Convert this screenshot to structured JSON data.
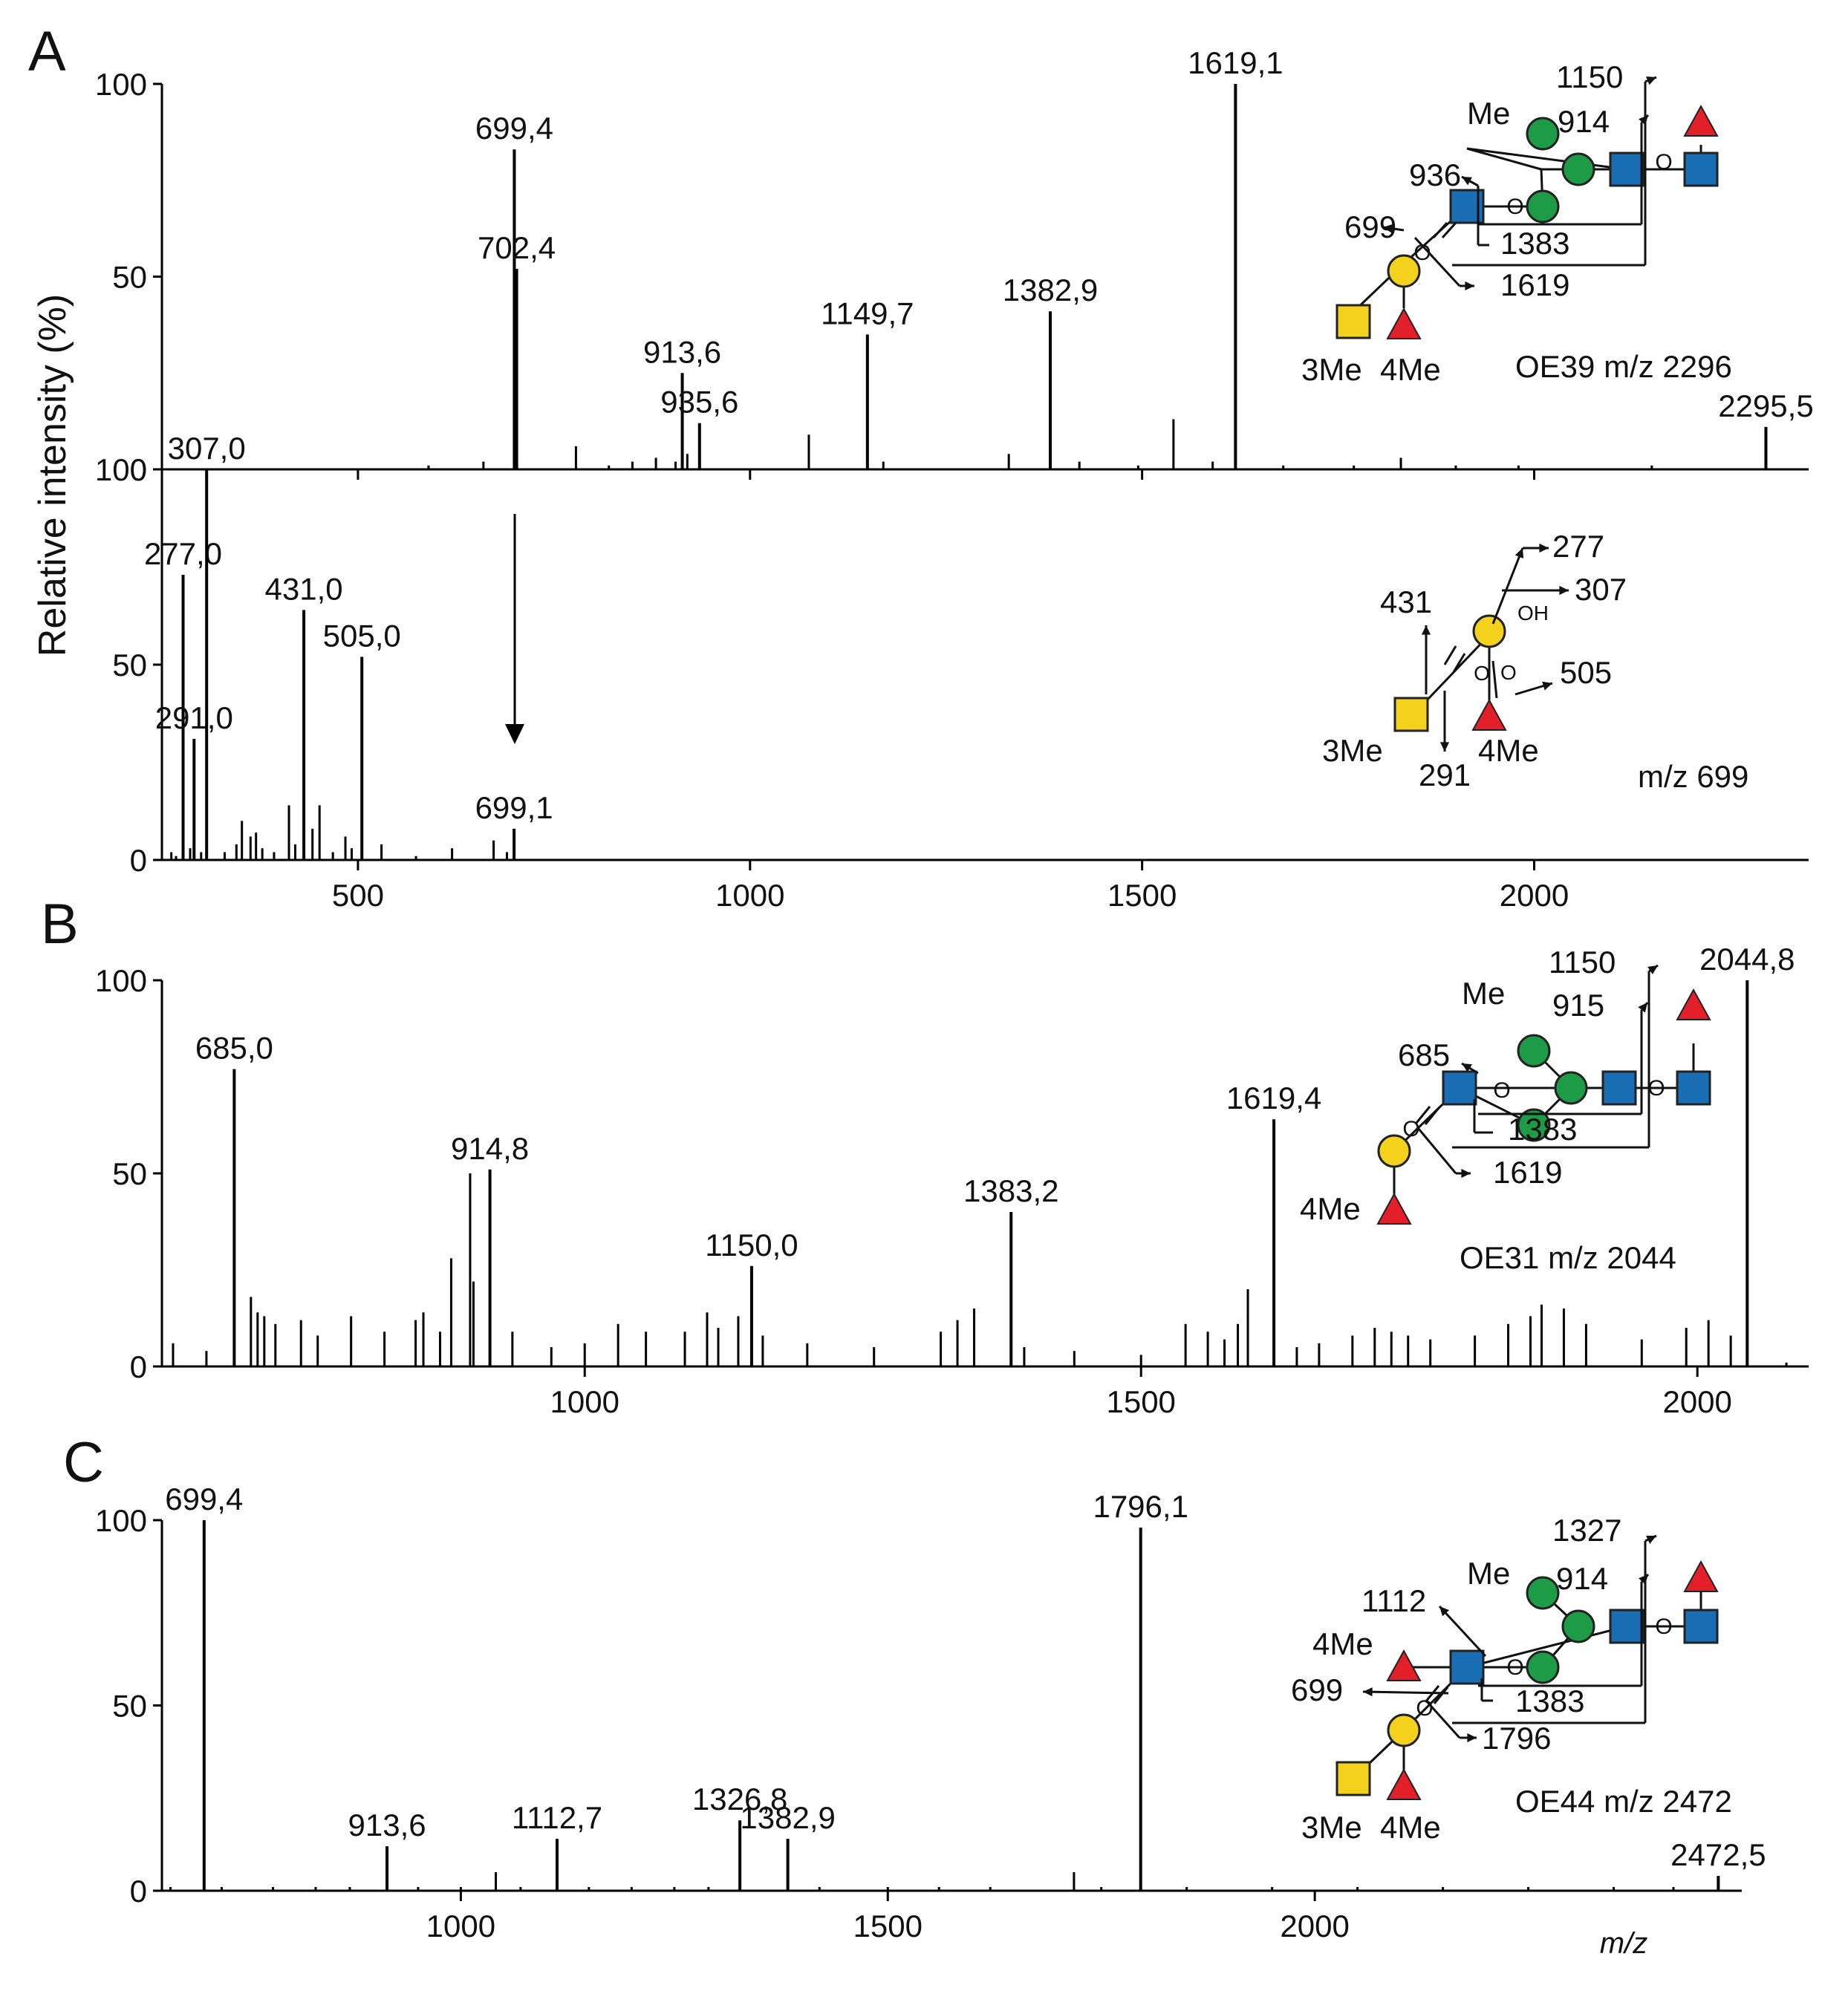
{
  "figure": {
    "ylabel": "Relative intensity (%)",
    "xlabel": "m/z"
  },
  "colors": {
    "trace": "#000000",
    "galactose": "#f4d11c",
    "mannose": "#1e9b46",
    "glcnac": "#1a6fb4",
    "fucose": "#e3202a"
  },
  "icons": [
    "galactose-circle-icon",
    "mannose-circle-icon",
    "glcnac-square-icon",
    "galnac-square-icon",
    "fucose-triangle-icon",
    "fragment-arrow-icon"
  ],
  "chart_data": [
    {
      "panel": "A",
      "type": "line",
      "title": "A",
      "subtitle": "",
      "xlim": [
        250,
        2350
      ],
      "ylim": [
        0,
        100
      ],
      "yticks": [
        "0",
        "50",
        "100"
      ],
      "xticks": [],
      "grid": false,
      "series": [
        {
          "values": [
            [
              590,
              1
            ],
            [
              660,
              2
            ],
            [
              700,
              1
            ],
            [
              778,
              6
            ],
            [
              820,
              1
            ],
            [
              850,
              2
            ],
            [
              880,
              3
            ],
            [
              905,
              2
            ],
            [
              920,
              4
            ],
            [
              1075,
              9
            ],
            [
              1170,
              2
            ],
            [
              1330,
              4
            ],
            [
              1420,
              2
            ],
            [
              1495,
              1
            ],
            [
              1540,
              13
            ],
            [
              1590,
              2
            ],
            [
              1680,
              1
            ],
            [
              1770,
              1
            ],
            [
              1830,
              3
            ],
            [
              1900,
              1
            ],
            [
              1980,
              1
            ],
            [
              2150,
              1
            ]
          ]
        }
      ],
      "peaks": [
        {
          "x": 699.4,
          "y": 83,
          "label": "699,4"
        },
        {
          "x": 702.4,
          "y": 52,
          "label": "702,4"
        },
        {
          "x": 913.6,
          "y": 25,
          "label": "913,6"
        },
        {
          "x": 935.6,
          "y": 12,
          "label": "935,6"
        },
        {
          "x": 1149.7,
          "y": 35,
          "label": "1149,7"
        },
        {
          "x": 1382.9,
          "y": 41,
          "label": "1382,9"
        },
        {
          "x": 1619.1,
          "y": 100,
          "label": "1619,1"
        },
        {
          "x": 2295.5,
          "y": 11,
          "label": "2295,5"
        }
      ],
      "structure": {
        "name": "OE39 m/z 2296",
        "labels": [
          "Me",
          "1150",
          "914",
          "936",
          "699",
          "1383",
          "1619",
          "3Me",
          "4Me"
        ]
      }
    },
    {
      "panel": "A-MS3",
      "type": "line",
      "title": "",
      "subtitle": "",
      "xlim": [
        250,
        2350
      ],
      "ylim": [
        0,
        100
      ],
      "yticks": [
        "0",
        "50",
        "100"
      ],
      "xticks": [
        "500",
        "1000",
        "1500",
        "2000"
      ],
      "grid": false,
      "series": [
        {
          "values": [
            [
              262,
              2
            ],
            [
              268,
              1
            ],
            [
              286,
              3
            ],
            [
              300,
              2
            ],
            [
              330,
              2
            ],
            [
              345,
              4
            ],
            [
              352,
              10
            ],
            [
              363,
              6
            ],
            [
              370,
              7
            ],
            [
              378,
              3
            ],
            [
              393,
              2
            ],
            [
              412,
              14
            ],
            [
              420,
              4
            ],
            [
              442,
              8
            ],
            [
              451,
              14
            ],
            [
              468,
              2
            ],
            [
              484,
              6
            ],
            [
              492,
              3
            ],
            [
              530,
              4
            ],
            [
              574,
              1
            ],
            [
              620,
              3
            ],
            [
              673,
              5
            ],
            [
              690,
              2
            ]
          ]
        }
      ],
      "peaks": [
        {
          "x": 277.0,
          "y": 73,
          "label": "277,0"
        },
        {
          "x": 291.0,
          "y": 31,
          "label": "291,0"
        },
        {
          "x": 307.0,
          "y": 100,
          "label": "307,0"
        },
        {
          "x": 431.0,
          "y": 64,
          "label": "431,0"
        },
        {
          "x": 505.0,
          "y": 52,
          "label": "505,0"
        },
        {
          "x": 699.1,
          "y": 8,
          "label": "699,1"
        }
      ],
      "structure": {
        "name": "m/z 699",
        "labels": [
          "277",
          "307",
          "431",
          "OH",
          "505",
          "3Me",
          "291",
          "4Me"
        ]
      }
    },
    {
      "panel": "B",
      "type": "line",
      "title": "B",
      "subtitle": "",
      "xlim": [
        620,
        2100
      ],
      "ylim": [
        0,
        100
      ],
      "yticks": [
        "0",
        "50",
        "100"
      ],
      "xticks": [
        "1000",
        "1500",
        "2000"
      ],
      "grid": false,
      "series": [
        {
          "values": [
            [
              630,
              6
            ],
            [
              660,
              4
            ],
            [
              700,
              18
            ],
            [
              706,
              14
            ],
            [
              712,
              13
            ],
            [
              722,
              11
            ],
            [
              745,
              12
            ],
            [
              760,
              8
            ],
            [
              790,
              13
            ],
            [
              820,
              9
            ],
            [
              848,
              12
            ],
            [
              855,
              14
            ],
            [
              870,
              9
            ],
            [
              880,
              28
            ],
            [
              897,
              50
            ],
            [
              900,
              22
            ],
            [
              915,
              12
            ],
            [
              935,
              9
            ],
            [
              970,
              5
            ],
            [
              1000,
              6
            ],
            [
              1030,
              11
            ],
            [
              1055,
              9
            ],
            [
              1090,
              9
            ],
            [
              1110,
              14
            ],
            [
              1120,
              10
            ],
            [
              1138,
              13
            ],
            [
              1160,
              8
            ],
            [
              1200,
              6
            ],
            [
              1260,
              5
            ],
            [
              1320,
              9
            ],
            [
              1335,
              12
            ],
            [
              1350,
              15
            ],
            [
              1395,
              5
            ],
            [
              1440,
              4
            ],
            [
              1500,
              3
            ],
            [
              1540,
              11
            ],
            [
              1560,
              9
            ],
            [
              1575,
              7
            ],
            [
              1587,
              11
            ],
            [
              1596,
              20
            ],
            [
              1640,
              5
            ],
            [
              1660,
              6
            ],
            [
              1690,
              8
            ],
            [
              1710,
              10
            ],
            [
              1725,
              9
            ],
            [
              1740,
              8
            ],
            [
              1760,
              7
            ],
            [
              1800,
              8
            ],
            [
              1830,
              11
            ],
            [
              1850,
              13
            ],
            [
              1860,
              16
            ],
            [
              1880,
              15
            ],
            [
              1900,
              11
            ],
            [
              1950,
              7
            ],
            [
              1990,
              10
            ],
            [
              2010,
              12
            ],
            [
              2030,
              8
            ],
            [
              2080,
              1
            ]
          ]
        }
      ],
      "peaks": [
        {
          "x": 685.0,
          "y": 77,
          "label": "685,0"
        },
        {
          "x": 914.8,
          "y": 51,
          "label": "914,8"
        },
        {
          "x": 1150.0,
          "y": 26,
          "label": "1150,0"
        },
        {
          "x": 1383.2,
          "y": 40,
          "label": "1383,2"
        },
        {
          "x": 1619.4,
          "y": 64,
          "label": "1619,4"
        },
        {
          "x": 2044.8,
          "y": 100,
          "label": "2044,8"
        }
      ],
      "structure": {
        "name": "OE31 m/z 2044",
        "labels": [
          "Me",
          "1150",
          "915",
          "685",
          "1383",
          "1619",
          "4Me"
        ]
      }
    },
    {
      "panel": "C",
      "type": "line",
      "title": "C",
      "subtitle": "",
      "xlim": [
        650,
        2500
      ],
      "ylim": [
        0,
        100
      ],
      "yticks": [
        "0",
        "50",
        "100"
      ],
      "xticks": [
        "1000",
        "1500",
        "2000"
      ],
      "grid": false,
      "series": [
        {
          "values": [
            [
              660,
              1
            ],
            [
              720,
              1
            ],
            [
              780,
              1
            ],
            [
              830,
              1
            ],
            [
              870,
              1
            ],
            [
              950,
              1
            ],
            [
              1000,
              1
            ],
            [
              1041,
              5
            ],
            [
              1070,
              1
            ],
            [
              1150,
              1
            ],
            [
              1200,
              1
            ],
            [
              1250,
              1
            ],
            [
              1290,
              1
            ],
            [
              1420,
              1
            ],
            [
              1500,
              1
            ],
            [
              1560,
              1
            ],
            [
              1620,
              1
            ],
            [
              1718,
              5
            ],
            [
              1750,
              1
            ],
            [
              1850,
              1
            ],
            [
              1950,
              1
            ],
            [
              2050,
              1
            ],
            [
              2150,
              1
            ],
            [
              2250,
              1
            ],
            [
              2350,
              1
            ],
            [
              2420,
              1
            ]
          ]
        }
      ],
      "peaks": [
        {
          "x": 699.4,
          "y": 100,
          "label": "699,4"
        },
        {
          "x": 913.6,
          "y": 12,
          "label": "913,6"
        },
        {
          "x": 1112.7,
          "y": 14,
          "label": "1112,7"
        },
        {
          "x": 1326.8,
          "y": 19,
          "label": "1326,8"
        },
        {
          "x": 1382.9,
          "y": 14,
          "label": "1382,9"
        },
        {
          "x": 1796.1,
          "y": 98,
          "label": "1796,1"
        },
        {
          "x": 2472.5,
          "y": 4,
          "label": "2472,5"
        }
      ],
      "structure": {
        "name": "OE44 m/z 2472",
        "labels": [
          "Me",
          "1327",
          "914",
          "1112",
          "4Me",
          "699",
          "1383",
          "1796",
          "3Me",
          "4Me"
        ]
      }
    }
  ]
}
